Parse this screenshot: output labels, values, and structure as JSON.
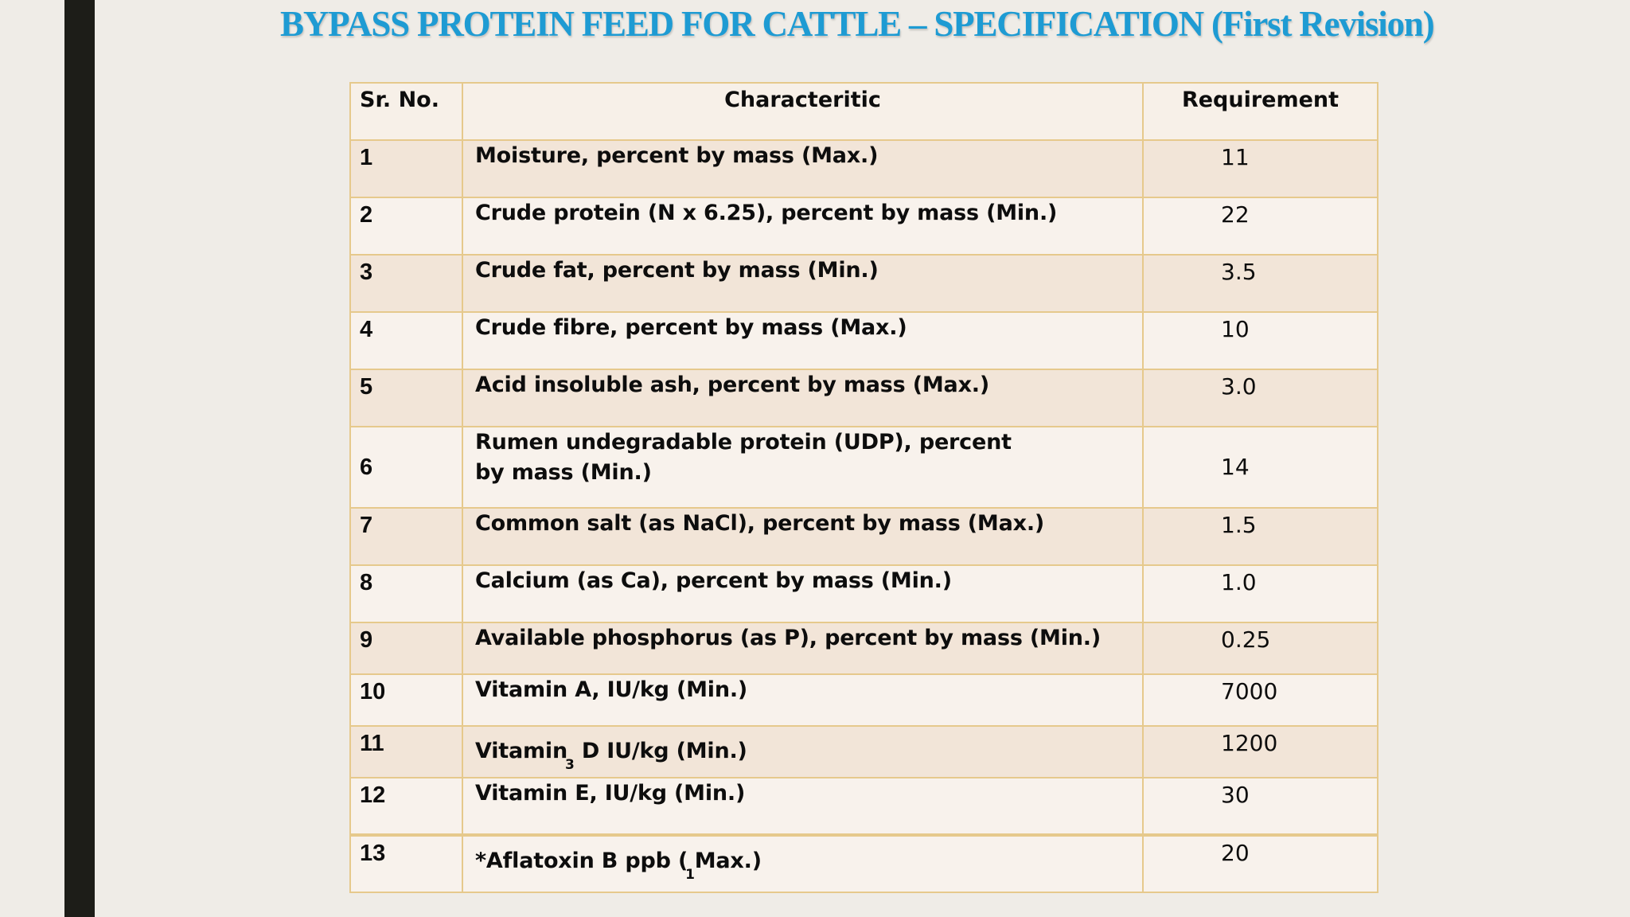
{
  "slide": {
    "title": "BYPASS PROTEIN  FEED  FOR CATTLE – SPECIFICATION (First Revision)"
  },
  "table": {
    "headers": {
      "sr_no": "Sr. No.",
      "characteristic": "Characteritic",
      "requirement": "Requirement"
    },
    "rows": [
      {
        "sr": "1",
        "characteristic": "Moisture,  percent by  mass  (Max.)",
        "requirement": "11"
      },
      {
        "sr": "2",
        "characteristic": "Crude  protein  (N x 6.25), percent by  mass  (Min.)",
        "requirement": "22"
      },
      {
        "sr": "3",
        "characteristic": "Crude  fat, percent by  mass  (Min.)",
        "requirement": "3.5"
      },
      {
        "sr": "4",
        "characteristic": "Crude  fibre,  percent by  mass  (Max.)",
        "requirement": "10"
      },
      {
        "sr": "5",
        "characteristic": "Acid insoluble  ash,  percent by  mass  (Max.)",
        "requirement": "3.0"
      },
      {
        "sr": "6",
        "characteristic_line1": "Rumen  undegradable protein  (UDP), percent",
        "characteristic_line2": "by  mass  (Min.)",
        "requirement": "14"
      },
      {
        "sr": "7",
        "characteristic": "Common salt  (as  NaCl), percent by  mass  (Max.)",
        "requirement": "1.5"
      },
      {
        "sr": "8",
        "characteristic": "Calcium  (as  Ca), percent by  mass  (Min.)",
        "requirement": "1.0"
      },
      {
        "sr": "9",
        "characteristic": "Available  phosphorus (as  P), percent by  mass  (Min.)",
        "requirement": "0.25"
      },
      {
        "sr": "10",
        "characteristic": "Vitamin  A, IU/kg (Min.)",
        "requirement": "7000"
      },
      {
        "sr": "11",
        "characteristic_pre": "Vitamin",
        "characteristic_sub": "3",
        "characteristic_post": " D   IU/kg (Min.)",
        "requirement": "1200"
      },
      {
        "sr": "12",
        "characteristic": "Vitamin  E, IU/kg (Min.)",
        "requirement": "30"
      },
      {
        "sr": "13",
        "characteristic_pre": "*Aflatoxin B  ppb  (",
        "characteristic_sub": "1",
        "characteristic_post": "Max.)",
        "requirement": "20"
      }
    ]
  }
}
